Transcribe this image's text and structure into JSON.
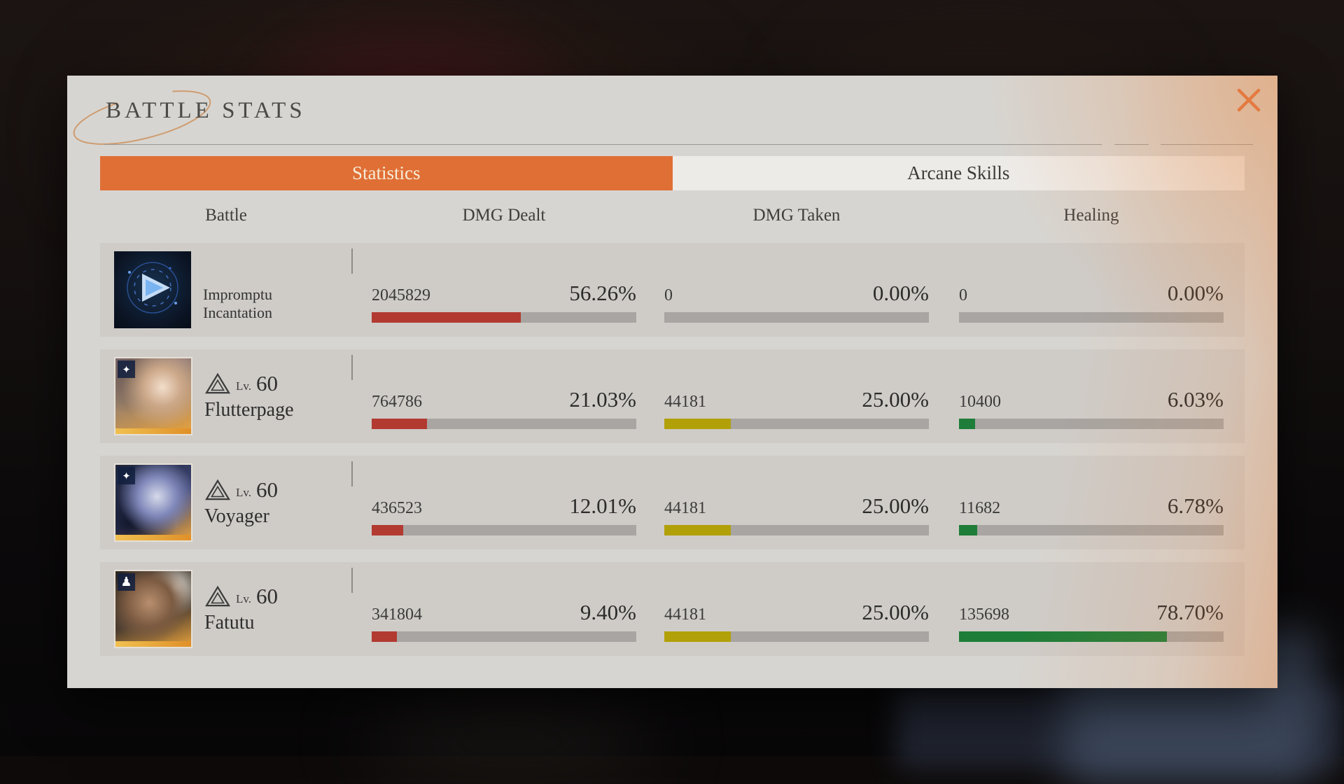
{
  "panel": {
    "title": "BATTLE STATS",
    "tabs": [
      {
        "label": "Statistics",
        "active": true
      },
      {
        "label": "Arcane Skills",
        "active": false
      }
    ],
    "columns": [
      "Battle",
      "DMG Dealt",
      "DMG Taken",
      "Healing"
    ]
  },
  "colors": {
    "accent": "#df6f3a",
    "tab_active_bg": "#e06f35",
    "tab_active_text": "#f6ecd9",
    "dealt_bar": "#b23a31",
    "taken_bar": "#b2a008",
    "healing_bar": "#1e7d38",
    "bar_track": "#a8a5a2"
  },
  "rows": [
    {
      "name": "Impromptu Incantation",
      "icon": "impromptu-incantation-skill-icon",
      "dealt": {
        "value": "2045829",
        "pct": "56.26%",
        "pct_num": 56.26
      },
      "taken": {
        "value": "0",
        "pct": "0.00%",
        "pct_num": 0
      },
      "healing": {
        "value": "0",
        "pct": "0.00%",
        "pct_num": 0
      }
    },
    {
      "name": "Flutterpage",
      "icon": "flutterpage-portrait",
      "level_label": "Lv.",
      "level": "60",
      "dealt": {
        "value": "764786",
        "pct": "21.03%",
        "pct_num": 21.03
      },
      "taken": {
        "value": "44181",
        "pct": "25.00%",
        "pct_num": 25
      },
      "healing": {
        "value": "10400",
        "pct": "6.03%",
        "pct_num": 6.03
      }
    },
    {
      "name": "Voyager",
      "icon": "voyager-portrait",
      "level_label": "Lv.",
      "level": "60",
      "dealt": {
        "value": "436523",
        "pct": "12.01%",
        "pct_num": 12.01
      },
      "taken": {
        "value": "44181",
        "pct": "25.00%",
        "pct_num": 25
      },
      "healing": {
        "value": "11682",
        "pct": "6.78%",
        "pct_num": 6.78
      }
    },
    {
      "name": "Fatutu",
      "icon": "fatutu-portrait",
      "level_label": "Lv.",
      "level": "60",
      "dealt": {
        "value": "341804",
        "pct": "9.40%",
        "pct_num": 9.4
      },
      "taken": {
        "value": "44181",
        "pct": "25.00%",
        "pct_num": 25
      },
      "healing": {
        "value": "135698",
        "pct": "78.70%",
        "pct_num": 78.7
      }
    }
  ]
}
